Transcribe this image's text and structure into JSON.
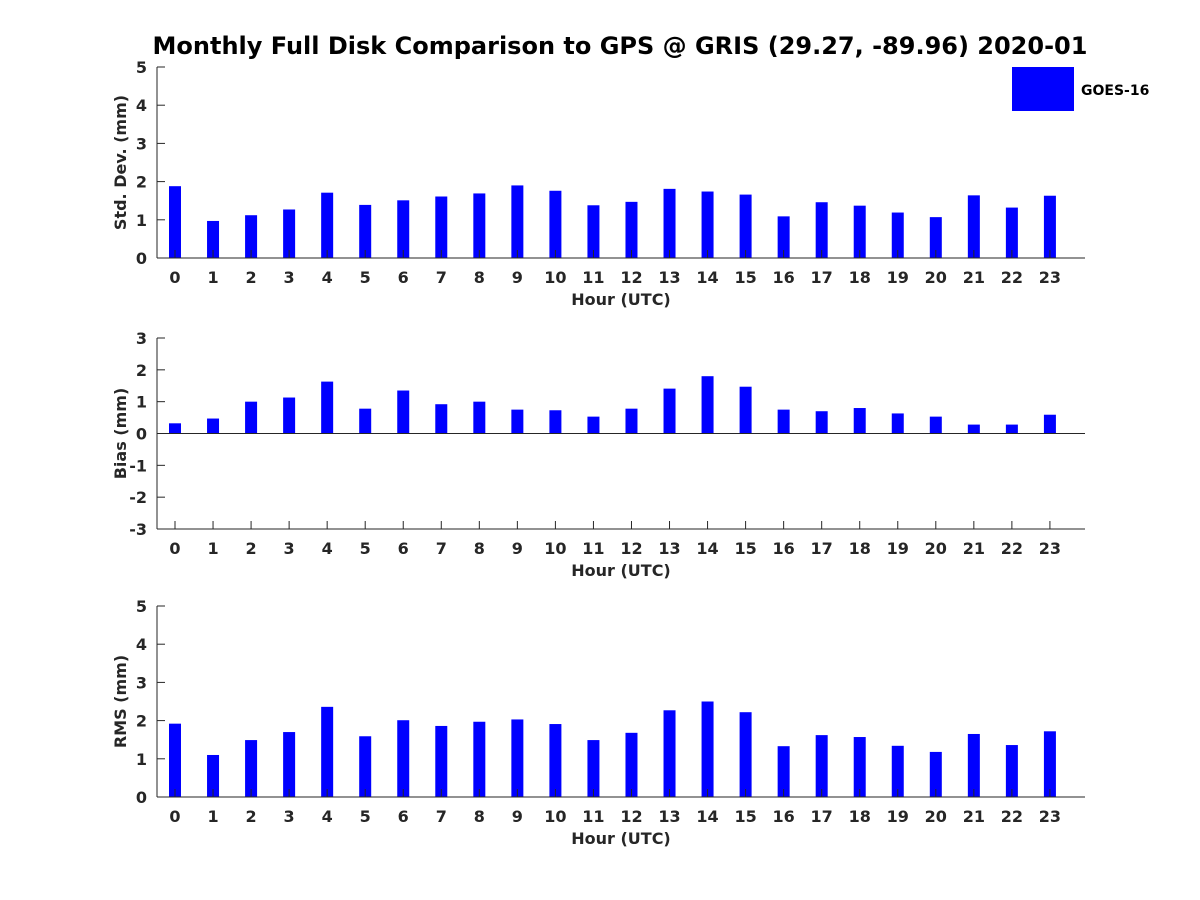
{
  "chart_data": {
    "type": "bar",
    "title": "Monthly Full Disk Comparison to GPS @ GRIS (29.27, -89.96) 2020-01",
    "legend": {
      "label": "GOES-16",
      "color": "#0000ff",
      "placement": "top-right"
    },
    "categories": [
      "0",
      "1",
      "2",
      "3",
      "4",
      "5",
      "6",
      "7",
      "8",
      "9",
      "10",
      "11",
      "12",
      "13",
      "14",
      "15",
      "16",
      "17",
      "18",
      "19",
      "20",
      "21",
      "22",
      "23"
    ],
    "panels": [
      {
        "ylabel": "Std. Dev. (mm)",
        "xlabel": "Hour (UTC)",
        "ylim": [
          0,
          5
        ],
        "yticks": [
          "0",
          "1",
          "2",
          "3",
          "4",
          "5"
        ],
        "series": [
          {
            "name": "GOES-16",
            "values": [
              1.88,
              0.97,
              1.12,
              1.27,
              1.71,
              1.39,
              1.51,
              1.61,
              1.69,
              1.9,
              1.76,
              1.38,
              1.47,
              1.81,
              1.74,
              1.66,
              1.09,
              1.46,
              1.37,
              1.19,
              1.07,
              1.64,
              1.32,
              1.63
            ]
          }
        ]
      },
      {
        "ylabel": "Bias (mm)",
        "xlabel": "Hour (UTC)",
        "ylim": [
          -3,
          3
        ],
        "yticks": [
          "-3",
          "-2",
          "-1",
          "0",
          "1",
          "2",
          "3"
        ],
        "baseline": 0,
        "series": [
          {
            "name": "GOES-16",
            "values": [
              0.32,
              0.47,
              1.0,
              1.13,
              1.63,
              0.78,
              1.35,
              0.92,
              1.0,
              0.75,
              0.73,
              0.53,
              0.78,
              1.41,
              1.8,
              1.47,
              0.75,
              0.7,
              0.8,
              0.63,
              0.53,
              0.28,
              0.28,
              0.59
            ]
          }
        ]
      },
      {
        "ylabel": "RMS (mm)",
        "xlabel": "Hour (UTC)",
        "ylim": [
          0,
          5
        ],
        "yticks": [
          "0",
          "1",
          "2",
          "3",
          "4",
          "5"
        ],
        "series": [
          {
            "name": "GOES-16",
            "values": [
              1.92,
              1.1,
              1.49,
              1.7,
              2.36,
              1.59,
              2.01,
              1.86,
              1.97,
              2.03,
              1.91,
              1.49,
              1.68,
              2.27,
              2.5,
              2.22,
              1.33,
              1.62,
              1.57,
              1.34,
              1.18,
              1.65,
              1.36,
              1.72
            ]
          }
        ]
      }
    ]
  }
}
